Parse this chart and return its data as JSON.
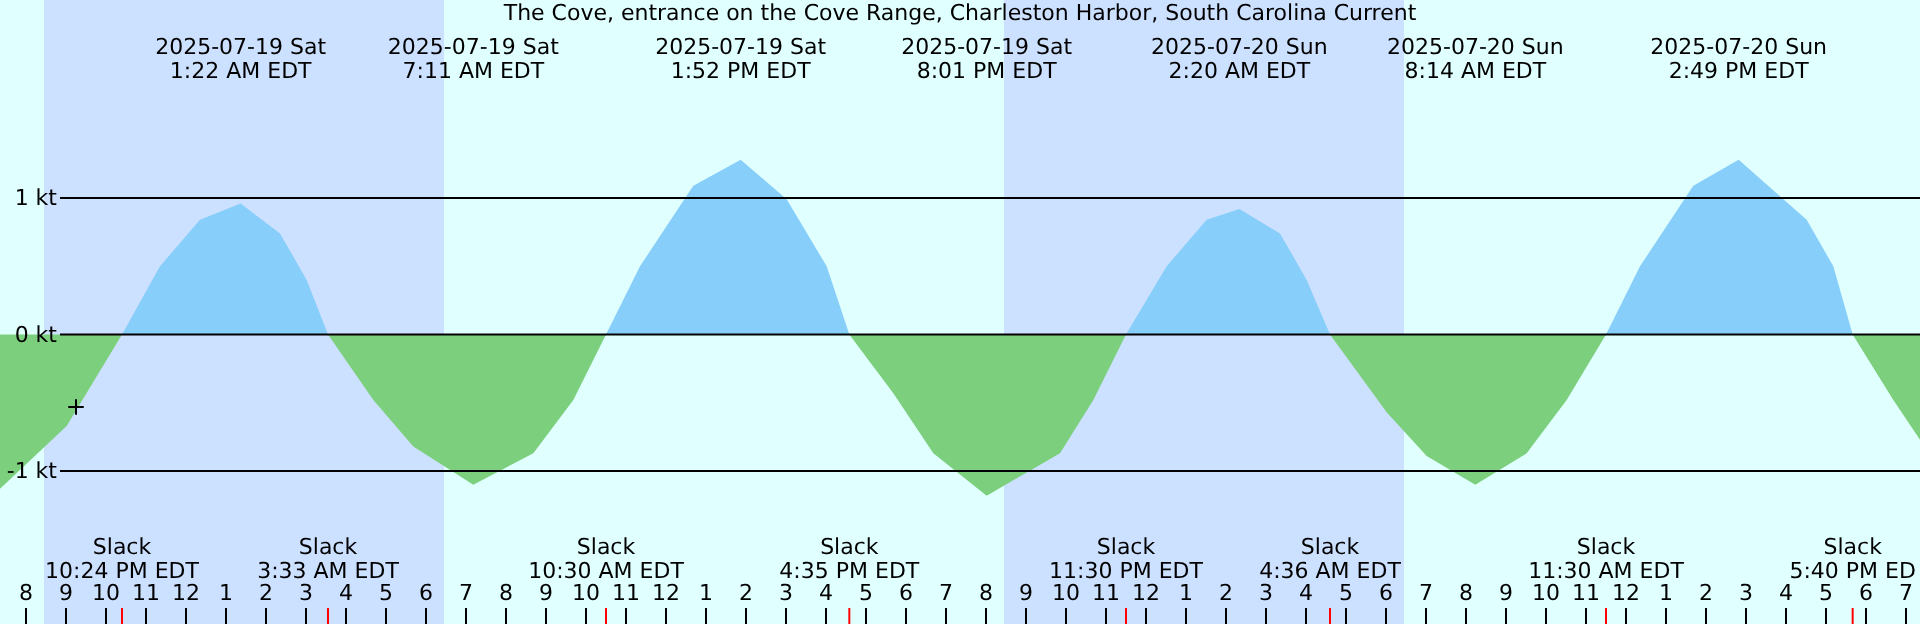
{
  "chart_data": {
    "type": "area",
    "title": "The Cove, entrance on the Cove Range, Charleston Harbor, South Carolina Current",
    "x": [
      "2025-07-18T19:21",
      "2025-07-18T21:01",
      "2025-07-18T22:24",
      "2025-07-18T23:21",
      "2025-07-19T00:21",
      "2025-07-19T01:22",
      "2025-07-19T02:21",
      "2025-07-19T03:01",
      "2025-07-19T03:33",
      "2025-07-19T04:41",
      "2025-07-19T05:41",
      "2025-07-19T07:11",
      "2025-07-19T08:41",
      "2025-07-19T09:41",
      "2025-07-19T10:30",
      "2025-07-19T11:21",
      "2025-07-19T12:41",
      "2025-07-19T13:52",
      "2025-07-19T15:01",
      "2025-07-19T16:01",
      "2025-07-19T16:35",
      "2025-07-19T17:41",
      "2025-07-19T18:41",
      "2025-07-19T20:01",
      "2025-07-19T21:51",
      "2025-07-19T22:41",
      "2025-07-19T23:30",
      "2025-07-20T00:31",
      "2025-07-20T01:31",
      "2025-07-20T02:20",
      "2025-07-20T03:21",
      "2025-07-20T04:01",
      "2025-07-20T04:36",
      "2025-07-20T06:01",
      "2025-07-20T07:01",
      "2025-07-20T08:14",
      "2025-07-20T09:31",
      "2025-07-20T10:31",
      "2025-07-20T11:30",
      "2025-07-20T12:21",
      "2025-07-20T13:41",
      "2025-07-20T14:49",
      "2025-07-20T16:31",
      "2025-07-20T17:11",
      "2025-07-20T17:40",
      "2025-07-20T18:41",
      "2025-07-20T19:21"
    ],
    "series": [
      {
        "color": "#87cefa",
        "values": [
          null,
          null,
          0,
          0.5,
          0.84,
          0.96,
          0.74,
          0.4,
          0,
          null,
          null,
          null,
          null,
          null,
          0,
          0.5,
          1.09,
          1.28,
          0.99,
          0.5,
          0,
          null,
          null,
          null,
          null,
          null,
          0,
          0.5,
          0.84,
          0.92,
          0.74,
          0.4,
          0,
          null,
          null,
          null,
          null,
          null,
          0,
          0.5,
          1.09,
          1.28,
          0.84,
          0.5,
          0,
          null,
          null
        ]
      },
      {
        "color": "#7ccf7c",
        "values": [
          -1.13,
          -0.67,
          0,
          null,
          null,
          null,
          null,
          null,
          0,
          -0.48,
          -0.82,
          -1.1,
          -0.87,
          -0.48,
          0,
          null,
          null,
          null,
          null,
          null,
          0,
          -0.43,
          -0.87,
          -1.18,
          -0.87,
          -0.48,
          0,
          null,
          null,
          null,
          null,
          null,
          0,
          -0.57,
          -0.89,
          -1.1,
          -0.87,
          -0.48,
          0,
          null,
          null,
          null,
          null,
          null,
          0,
          -0.48,
          -0.77
        ]
      },
      {
        "type": "scatter",
        "marker": "cross",
        "color": "#000000",
        "x": [
          "2025-07-18T21:15"
        ],
        "values": [
          -0.53
        ]
      }
    ],
    "xlim": [
      "2025-07-18T19:21",
      "2025-07-20T19:21"
    ],
    "xticks": [
      {
        "value": "2025-07-18T20:00",
        "label": "8"
      },
      {
        "value": "2025-07-18T21:00",
        "label": "9"
      },
      {
        "value": "2025-07-18T22:00",
        "label": "10"
      },
      {
        "value": "2025-07-18T23:00",
        "label": "11"
      },
      {
        "value": "2025-07-19T00:00",
        "label": "12"
      },
      {
        "value": "2025-07-19T01:00",
        "label": "1"
      },
      {
        "value": "2025-07-19T02:00",
        "label": "2"
      },
      {
        "value": "2025-07-19T03:00",
        "label": "3"
      },
      {
        "value": "2025-07-19T04:00",
        "label": "4"
      },
      {
        "value": "2025-07-19T05:00",
        "label": "5"
      },
      {
        "value": "2025-07-19T06:00",
        "label": "6"
      },
      {
        "value": "2025-07-19T07:00",
        "label": "7"
      },
      {
        "value": "2025-07-19T08:00",
        "label": "8"
      },
      {
        "value": "2025-07-19T09:00",
        "label": "9"
      },
      {
        "value": "2025-07-19T10:00",
        "label": "10"
      },
      {
        "value": "2025-07-19T11:00",
        "label": "11"
      },
      {
        "value": "2025-07-19T12:00",
        "label": "12"
      },
      {
        "value": "2025-07-19T13:00",
        "label": "1"
      },
      {
        "value": "2025-07-19T14:00",
        "label": "2"
      },
      {
        "value": "2025-07-19T15:00",
        "label": "3"
      },
      {
        "value": "2025-07-19T16:00",
        "label": "4"
      },
      {
        "value": "2025-07-19T17:00",
        "label": "5"
      },
      {
        "value": "2025-07-19T18:00",
        "label": "6"
      },
      {
        "value": "2025-07-19T19:00",
        "label": "7"
      },
      {
        "value": "2025-07-19T20:00",
        "label": "8"
      },
      {
        "value": "2025-07-19T21:00",
        "label": "9"
      },
      {
        "value": "2025-07-19T22:00",
        "label": "10"
      },
      {
        "value": "2025-07-19T23:00",
        "label": "11"
      },
      {
        "value": "2025-07-20T00:00",
        "label": "12"
      },
      {
        "value": "2025-07-20T01:00",
        "label": "1"
      },
      {
        "value": "2025-07-20T02:00",
        "label": "2"
      },
      {
        "value": "2025-07-20T03:00",
        "label": "3"
      },
      {
        "value": "2025-07-20T04:00",
        "label": "4"
      },
      {
        "value": "2025-07-20T05:00",
        "label": "5"
      },
      {
        "value": "2025-07-20T06:00",
        "label": "6"
      },
      {
        "value": "2025-07-20T07:00",
        "label": "7"
      },
      {
        "value": "2025-07-20T08:00",
        "label": "8"
      },
      {
        "value": "2025-07-20T09:00",
        "label": "9"
      },
      {
        "value": "2025-07-20T10:00",
        "label": "10"
      },
      {
        "value": "2025-07-20T11:00",
        "label": "11"
      },
      {
        "value": "2025-07-20T12:00",
        "label": "12"
      },
      {
        "value": "2025-07-20T13:00",
        "label": "1"
      },
      {
        "value": "2025-07-20T14:00",
        "label": "2"
      },
      {
        "value": "2025-07-20T15:00",
        "label": "3"
      },
      {
        "value": "2025-07-20T16:00",
        "label": "4"
      },
      {
        "value": "2025-07-20T17:00",
        "label": "5"
      },
      {
        "value": "2025-07-20T18:00",
        "label": "6"
      },
      {
        "value": "2025-07-20T19:00",
        "label": "7"
      },
      {
        "value": "2025-07-18T22:24",
        "label": null
      },
      {
        "value": "2025-07-19T03:33",
        "label": null
      },
      {
        "value": "2025-07-19T10:30",
        "label": null
      },
      {
        "value": "2025-07-19T16:35",
        "label": null
      },
      {
        "value": "2025-07-19T23:30",
        "label": null
      },
      {
        "value": "2025-07-20T04:36",
        "label": null
      },
      {
        "value": "2025-07-20T11:30",
        "label": null
      },
      {
        "value": "2025-07-20T17:40",
        "label": null
      }
    ],
    "ylim": [
      -2.12,
      2.45
    ],
    "yticks": [
      {
        "value": -1,
        "label": "-1 kt"
      },
      {
        "value": 0,
        "label": "0 kt"
      },
      {
        "value": 1,
        "label": "1 kt"
      }
    ],
    "grid": "y",
    "bands": [
      {
        "axis": "x",
        "from": "2025-07-18T20:27",
        "to": "2025-07-19T06:27",
        "color": "#cce0ff"
      },
      {
        "axis": "x",
        "from": "2025-07-19T20:27",
        "to": "2025-07-20T06:27",
        "color": "#cce0ff"
      }
    ],
    "annotations": [
      "2025-07-19 Sat\n1:22 AM EDT",
      "2025-07-19 Sat\n7:11 AM EDT",
      "2025-07-19 Sat\n1:52 PM EDT",
      "2025-07-19 Sat\n8:01 PM EDT",
      "2025-07-20 Sun\n2:20 AM EDT",
      "2025-07-20 Sun\n8:14 AM EDT",
      "2025-07-20 Sun\n2:49 PM EDT",
      "Slack\n10:24 PM EDT",
      "Slack\n3:33 AM EDT",
      "Slack\n10:30 AM EDT",
      "Slack\n4:35 PM EDT",
      "Slack\n11:30 PM EDT",
      "Slack\n4:36 AM EDT",
      "Slack\n11:30 AM EDT",
      "Slack\n5:40 PM ED"
    ]
  }
}
